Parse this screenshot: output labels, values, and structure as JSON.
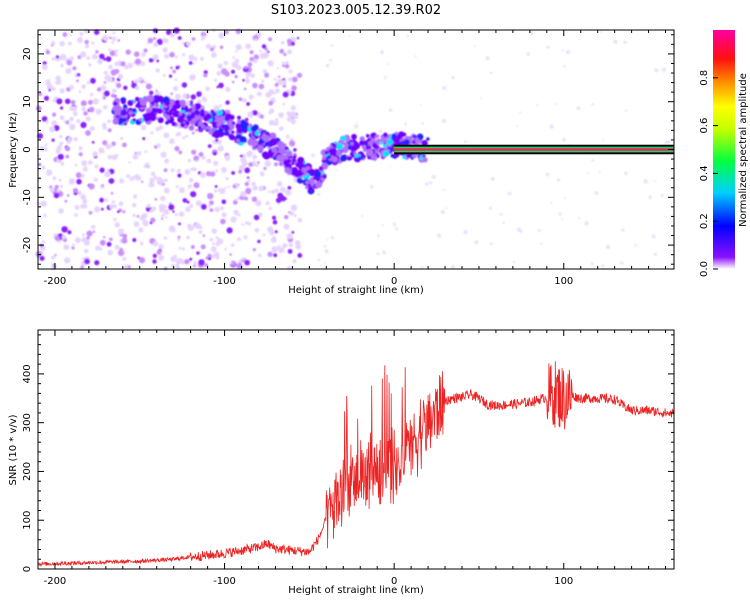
{
  "figure_title": "S103.2023.005.12.39.R02",
  "chart_data": [
    {
      "type": "heatmap",
      "title": "",
      "xlabel": "Height of straight line (km)",
      "ylabel": "Frequency (Hz)",
      "xlim": [
        -210,
        165
      ],
      "ylim": [
        -25,
        25
      ],
      "xticks": [
        -200,
        -100,
        0,
        100
      ],
      "yticks": [
        -20,
        -10,
        0,
        10,
        20
      ],
      "colorbar": {
        "label": "Normalized spectral amplitude",
        "range": [
          0,
          1
        ],
        "ticks": [
          0.0,
          0.2,
          0.4,
          0.6,
          0.8
        ],
        "colormap": [
          "#ffffff",
          "#7a00ff",
          "#0000ff",
          "#00d8ff",
          "#00ff00",
          "#ffff00",
          "#ff8000",
          "#ff0000",
          "#ff00aa"
        ]
      },
      "ridge": {
        "x": [
          -160,
          -140,
          -120,
          -100,
          -90,
          -80,
          -70,
          -60,
          -50,
          -45,
          -40,
          -30,
          -20,
          -10,
          0,
          20,
          50,
          80,
          100,
          165
        ],
        "y": [
          8,
          8.5,
          7,
          5,
          4,
          2,
          0,
          -3,
          -6,
          -7,
          -1,
          0,
          0.5,
          0.5,
          1,
          0,
          0,
          0,
          0,
          0
        ]
      }
    },
    {
      "type": "line",
      "title": "",
      "xlabel": "Height of straight line (km)",
      "ylabel": "SNR (10 * v/v)",
      "xlim": [
        -210,
        165
      ],
      "ylim": [
        0,
        490
      ],
      "xticks": [
        -200,
        -100,
        0,
        100
      ],
      "yticks": [
        0,
        100,
        200,
        300,
        400
      ],
      "color": "#ee2222",
      "series": [
        {
          "x": [
            -210,
            -190,
            -170,
            -150,
            -130,
            -120,
            -110,
            -100,
            -90,
            -80,
            -75,
            -70,
            -60,
            -50,
            -45,
            -40,
            -35,
            -30,
            -25,
            -20,
            -15,
            -10,
            -5,
            0,
            5,
            10,
            15,
            20,
            25,
            30,
            35,
            40,
            45,
            50,
            55,
            60,
            70,
            80,
            90,
            95,
            100,
            105,
            110,
            120,
            130,
            135,
            140,
            150,
            160,
            165
          ],
          "y": [
            10,
            12,
            14,
            16,
            20,
            25,
            28,
            32,
            38,
            45,
            52,
            42,
            38,
            35,
            60,
            100,
            130,
            165,
            175,
            185,
            200,
            205,
            220,
            205,
            215,
            255,
            280,
            300,
            325,
            345,
            350,
            352,
            358,
            350,
            338,
            335,
            338,
            342,
            352,
            360,
            350,
            355,
            350,
            350,
            348,
            335,
            325,
            325,
            320,
            318
          ]
        }
      ]
    }
  ]
}
